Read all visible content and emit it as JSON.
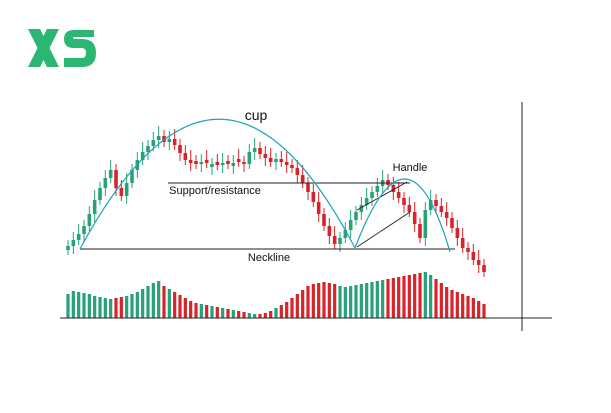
{
  "brand": {
    "logo_text": "XS",
    "logo_color": "#2bb673"
  },
  "chart_data": {
    "type": "candlestick",
    "pattern": "cup and handle",
    "annotations": {
      "cup": "cup",
      "handle": "Handle",
      "support": "Support/resistance",
      "neckline": "Neckline"
    },
    "colors": {
      "up": "#27a17a",
      "down": "#d8232a",
      "cup_curve": "#1aa3b8",
      "guide": "#222222"
    },
    "grid": false,
    "price": [
      246,
      240,
      234,
      226,
      214,
      200,
      188,
      178,
      170,
      188,
      196,
      183,
      170,
      160,
      152,
      146,
      140,
      136,
      142,
      139,
      145,
      153,
      160,
      163,
      164,
      162,
      163,
      164,
      165,
      163,
      164,
      163,
      162,
      164,
      152,
      148,
      154,
      158,
      162,
      159,
      162,
      165,
      168,
      175,
      183,
      192,
      202,
      214,
      226,
      236,
      244,
      238,
      230,
      220,
      212,
      205,
      198,
      192,
      186,
      180,
      185,
      192,
      198,
      205,
      212,
      224,
      238,
      210,
      200,
      206,
      212,
      218,
      228,
      238,
      248,
      252,
      260,
      265,
      272
    ],
    "volume": [
      22,
      25,
      24,
      23,
      22,
      20,
      19,
      18,
      17,
      18,
      19,
      20,
      22,
      24,
      27,
      30,
      33,
      35,
      30,
      27,
      24,
      21,
      18,
      15,
      13,
      12,
      11,
      10,
      9,
      8,
      7,
      6,
      5,
      4,
      3,
      2,
      2,
      3,
      5,
      8,
      11,
      14,
      18,
      22,
      26,
      30,
      32,
      33,
      34,
      33,
      32,
      30,
      29,
      30,
      31,
      32,
      33,
      34,
      35,
      36,
      37,
      38,
      39,
      40,
      41,
      42,
      43,
      44,
      41,
      37,
      33,
      29,
      26,
      24,
      22,
      20,
      18,
      15,
      12
    ]
  }
}
